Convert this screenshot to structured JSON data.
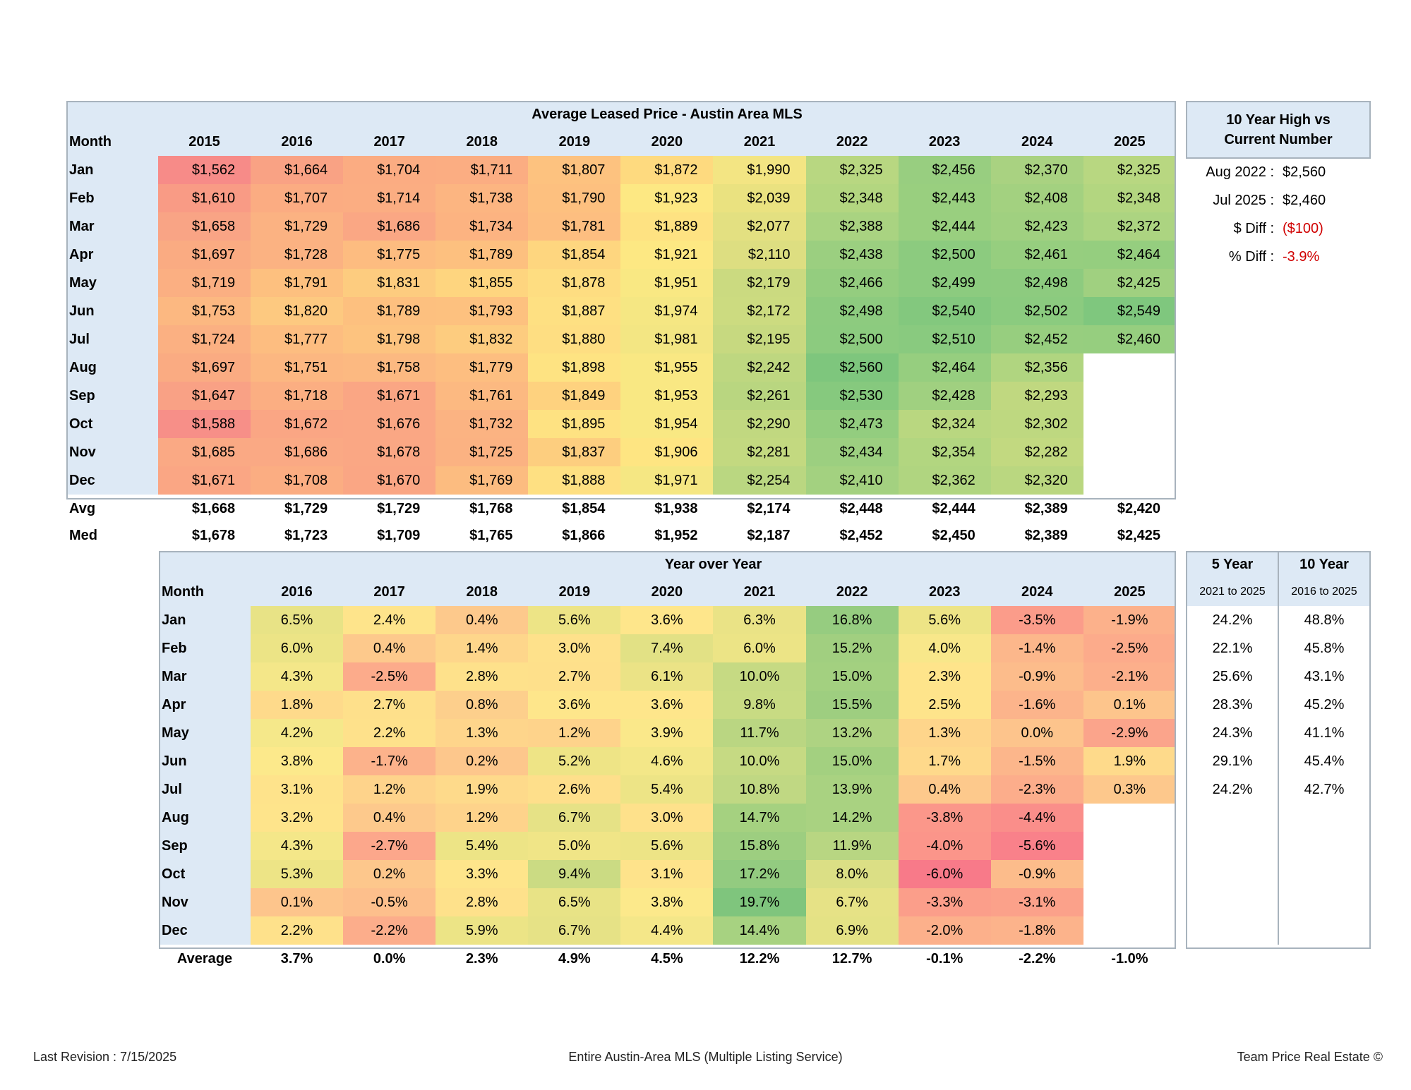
{
  "leased": {
    "title": "Average Leased Price - Austin Area MLS",
    "month_header": "Month",
    "years": [
      "2015",
      "2016",
      "2017",
      "2018",
      "2019",
      "2020",
      "2021",
      "2022",
      "2023",
      "2024",
      "2025"
    ],
    "rows": [
      {
        "m": "Jan",
        "v": [
          "$1,562",
          "$1,664",
          "$1,704",
          "$1,711",
          "$1,807",
          "$1,872",
          "$1,990",
          "$2,325",
          "$2,456",
          "$2,370",
          "$2,325"
        ],
        "c": [
          "#f78b88",
          "#f9a284",
          "#fbac82",
          "#fbad82",
          "#fdc27f",
          "#feda7f",
          "#f3e583",
          "#b8d781",
          "#98ce80",
          "#a9d281",
          "#b8d781"
        ]
      },
      {
        "m": "Feb",
        "v": [
          "$1,610",
          "$1,707",
          "$1,714",
          "$1,738",
          "$1,790",
          "$1,923",
          "$2,039",
          "$2,348",
          "$2,443",
          "$2,408",
          "$2,348"
        ],
        "c": [
          "#f99b85",
          "#fbac82",
          "#fbad82",
          "#fcb581",
          "#fdc07f",
          "#fde883",
          "#eae280",
          "#b3d680",
          "#99cf7f",
          "#a3d180",
          "#b3d680"
        ]
      },
      {
        "m": "Mar",
        "v": [
          "$1,658",
          "$1,729",
          "$1,686",
          "$1,734",
          "$1,781",
          "$1,889",
          "$2,077",
          "$2,388",
          "$2,444",
          "$2,423",
          "$2,372"
        ],
        "c": [
          "#f9a485",
          "#fbb282",
          "#faa784",
          "#fcb381",
          "#fdbe80",
          "#fee282",
          "#e3e081",
          "#a9d381",
          "#99cf7f",
          "#a0d080",
          "#acd481"
        ]
      },
      {
        "m": "Apr",
        "v": [
          "$1,697",
          "$1,728",
          "$1,775",
          "$1,789",
          "$1,854",
          "$1,921",
          "$2,110",
          "$2,438",
          "$2,500",
          "$2,461",
          "$2,464"
        ],
        "c": [
          "#faab82",
          "#fbb282",
          "#fdbc80",
          "#fdc07f",
          "#fed67f",
          "#fde883",
          "#ddde81",
          "#9bcf80",
          "#8ccb7f",
          "#96ce7f",
          "#95ce7f"
        ]
      },
      {
        "m": "May",
        "v": [
          "$1,719",
          "$1,791",
          "$1,831",
          "$1,855",
          "$1,878",
          "$1,951",
          "$2,179",
          "$2,466",
          "$2,499",
          "$2,498",
          "$2,425"
        ],
        "c": [
          "#fbaf82",
          "#fdc07f",
          "#fdcc7f",
          "#fed57f",
          "#fedd81",
          "#f9e883",
          "#cbda80",
          "#94cd7f",
          "#8ccb7f",
          "#8dcb7f",
          "#a0d080"
        ]
      },
      {
        "m": "Jun",
        "v": [
          "$1,753",
          "$1,820",
          "$1,789",
          "$1,793",
          "$1,887",
          "$1,974",
          "$2,172",
          "$2,498",
          "$2,540",
          "$2,502",
          "$2,549"
        ],
        "c": [
          "#fcb881",
          "#fdc980",
          "#fdc07f",
          "#fdc17f",
          "#fee082",
          "#f5e783",
          "#ccdb80",
          "#8dcb7f",
          "#83c87e",
          "#8bcb7f",
          "#7fc77e"
        ]
      },
      {
        "m": "Jul",
        "v": [
          "$1,724",
          "$1,777",
          "$1,798",
          "$1,832",
          "$1,880",
          "$1,981",
          "$2,195",
          "$2,500",
          "$2,510",
          "$2,452",
          "$2,460"
        ],
        "c": [
          "#fbb082",
          "#fdbd80",
          "#fdc37f",
          "#fdcc7f",
          "#fede82",
          "#f3e683",
          "#c7d980",
          "#8ccb7f",
          "#89ca7f",
          "#97ce7f",
          "#96ce7f"
        ]
      },
      {
        "m": "Aug",
        "v": [
          "$1,697",
          "$1,751",
          "$1,758",
          "$1,779",
          "$1,898",
          "$1,955",
          "$2,242",
          "$2,560",
          "$2,464",
          "$2,356",
          ""
        ],
        "c": [
          "#faab82",
          "#fcb781",
          "#fcb981",
          "#fdbe80",
          "#fee382",
          "#f9e883",
          "#bed780",
          "#7ec67d",
          "#96ce7f",
          "#b0d580",
          "#ffffff"
        ]
      },
      {
        "m": "Sep",
        "v": [
          "$1,647",
          "$1,718",
          "$1,671",
          "$1,761",
          "$1,849",
          "$1,953",
          "$2,261",
          "$2,530",
          "$2,428",
          "$2,293",
          ""
        ],
        "c": [
          "#f9a185",
          "#fbae82",
          "#faa684",
          "#fcb981",
          "#fed27f",
          "#f9e883",
          "#b9d680",
          "#86c97e",
          "#a0d080",
          "#c0d880",
          "#ffffff"
        ]
      },
      {
        "m": "Oct",
        "v": [
          "$1,588",
          "$1,672",
          "$1,676",
          "$1,732",
          "$1,895",
          "$1,954",
          "$2,290",
          "$2,473",
          "$2,324",
          "$2,302",
          ""
        ],
        "c": [
          "#f78f88",
          "#faa684",
          "#faa784",
          "#fbb382",
          "#fee282",
          "#f9e883",
          "#c1d880",
          "#93cd7f",
          "#b9d780",
          "#bed880",
          "#ffffff"
        ]
      },
      {
        "m": "Nov",
        "v": [
          "$1,685",
          "$1,686",
          "$1,678",
          "$1,725",
          "$1,837",
          "$1,906",
          "$2,281",
          "$2,434",
          "$2,354",
          "$2,282",
          ""
        ],
        "c": [
          "#faa984",
          "#faa984",
          "#faa784",
          "#fbb282",
          "#fdce7f",
          "#fee582",
          "#c3d980",
          "#9ccf80",
          "#b2d680",
          "#c2d980",
          "#ffffff"
        ]
      },
      {
        "m": "Dec",
        "v": [
          "$1,671",
          "$1,708",
          "$1,670",
          "$1,769",
          "$1,888",
          "$1,971",
          "$2,254",
          "$2,410",
          "$2,362",
          "$2,320",
          ""
        ],
        "c": [
          "#faa684",
          "#fbad82",
          "#faa684",
          "#fcbc80",
          "#fee082",
          "#f5e783",
          "#bad781",
          "#a3d180",
          "#b0d580",
          "#bad780",
          "#ffffff"
        ]
      }
    ],
    "avg_label": "Avg",
    "avg": [
      "$1,668",
      "$1,729",
      "$1,729",
      "$1,768",
      "$1,854",
      "$1,938",
      "$2,174",
      "$2,448",
      "$2,444",
      "$2,389",
      "$2,420"
    ],
    "med_label": "Med",
    "med": [
      "$1,678",
      "$1,723",
      "$1,709",
      "$1,765",
      "$1,866",
      "$1,952",
      "$2,187",
      "$2,452",
      "$2,450",
      "$2,389",
      "$2,425"
    ]
  },
  "high_box": {
    "header_line1": "10 Year High vs",
    "header_line2": "Current Number",
    "items": [
      {
        "label": "Aug 2022 :",
        "value": "$2,560",
        "negative": false
      },
      {
        "label": "Jul 2025 :",
        "value": "$2,460",
        "negative": false
      },
      {
        "label": "$ Diff :",
        "value": "($100)",
        "negative": true
      },
      {
        "label": "% Diff :",
        "value": "-3.9%",
        "negative": true
      }
    ]
  },
  "yoy": {
    "title": "Year over Year",
    "month_header": "Month",
    "years": [
      "2016",
      "2017",
      "2018",
      "2019",
      "2020",
      "2021",
      "2022",
      "2023",
      "2024",
      "2025"
    ],
    "rows": [
      {
        "m": "Jan",
        "v": [
          "6.5%",
          "2.4%",
          "0.4%",
          "5.6%",
          "3.6%",
          "6.3%",
          "16.8%",
          "5.6%",
          "-3.5%",
          "-1.9%"
        ],
        "c": [
          "#e8e386",
          "#fee48b",
          "#fdc98c",
          "#ede486",
          "#fee68b",
          "#eae386",
          "#96cc80",
          "#ede486",
          "#fb9c8a",
          "#fcb18b"
        ]
      },
      {
        "m": "Feb",
        "v": [
          "6.0%",
          "0.4%",
          "1.4%",
          "3.0%",
          "7.4%",
          "6.0%",
          "15.2%",
          "4.0%",
          "-1.4%",
          "-2.5%"
        ],
        "c": [
          "#ece486",
          "#fdc98c",
          "#fed68b",
          "#fee18b",
          "#e2e185",
          "#ece486",
          "#a1cf80",
          "#f8e78a",
          "#fcb78b",
          "#fcab8b"
        ]
      },
      {
        "m": "Mar",
        "v": [
          "4.3%",
          "-2.5%",
          "2.8%",
          "2.7%",
          "6.1%",
          "10.0%",
          "15.0%",
          "2.3%",
          "-0.9%",
          "-2.1%"
        ],
        "c": [
          "#f4e789",
          "#fcab8b",
          "#fee18b",
          "#fee08b",
          "#ebe386",
          "#c6da83",
          "#a3d080",
          "#fee48b",
          "#fcbc8b",
          "#fcaf8b"
        ]
      },
      {
        "m": "Apr",
        "v": [
          "1.8%",
          "2.7%",
          "0.8%",
          "3.6%",
          "3.6%",
          "9.8%",
          "15.5%",
          "2.5%",
          "-1.6%",
          "0.1%"
        ],
        "c": [
          "#feda8b",
          "#fee08b",
          "#fdcf8c",
          "#fee68b",
          "#fee68b",
          "#c8db83",
          "#9ece80",
          "#fee48b",
          "#fcb48b",
          "#fdc58c"
        ]
      },
      {
        "m": "May",
        "v": [
          "4.2%",
          "2.2%",
          "1.3%",
          "1.2%",
          "3.9%",
          "11.7%",
          "13.2%",
          "1.3%",
          "0.0%",
          "-2.9%"
        ],
        "c": [
          "#f5e88a",
          "#fee18b",
          "#fed58b",
          "#fed38b",
          "#fae88a",
          "#bad682",
          "#aed382",
          "#fed58b",
          "#fdc48c",
          "#fba48b"
        ]
      },
      {
        "m": "Jun",
        "v": [
          "3.8%",
          "-1.7%",
          "0.2%",
          "5.2%",
          "4.6%",
          "10.0%",
          "15.0%",
          "1.7%",
          "-1.5%",
          "1.9%"
        ],
        "c": [
          "#fce98b",
          "#fcb28b",
          "#fdc78c",
          "#eee486",
          "#f3e788",
          "#c6da83",
          "#a3d080",
          "#fed98b",
          "#fcb68b",
          "#feda8b"
        ]
      },
      {
        "m": "Jul",
        "v": [
          "3.1%",
          "1.2%",
          "1.9%",
          "2.6%",
          "5.4%",
          "10.8%",
          "13.9%",
          "0.4%",
          "-2.3%",
          "0.3%"
        ],
        "c": [
          "#fee38b",
          "#fed38b",
          "#feda8b",
          "#fedf8b",
          "#ede486",
          "#c0d883",
          "#a9d281",
          "#fdc98c",
          "#fcad8b",
          "#fdc88c"
        ]
      },
      {
        "m": "Aug",
        "v": [
          "3.2%",
          "0.4%",
          "1.2%",
          "6.7%",
          "3.0%",
          "14.7%",
          "14.2%",
          "-3.8%",
          "-4.4%",
          ""
        ],
        "c": [
          "#fee48b",
          "#fdc98c",
          "#fed38b",
          "#e6e286",
          "#fee18b",
          "#a5d180",
          "#a9d281",
          "#fb978a",
          "#fa8e8a",
          "#ffffff"
        ]
      },
      {
        "m": "Sep",
        "v": [
          "4.3%",
          "-2.7%",
          "5.4%",
          "5.0%",
          "5.6%",
          "15.8%",
          "11.9%",
          "-4.0%",
          "-5.6%",
          ""
        ],
        "c": [
          "#f4e789",
          "#fca78b",
          "#ede486",
          "#f0e587",
          "#ede486",
          "#9dce80",
          "#b8d682",
          "#fb958a",
          "#f9818a",
          "#ffffff"
        ]
      },
      {
        "m": "Oct",
        "v": [
          "5.3%",
          "0.2%",
          "3.3%",
          "9.4%",
          "3.1%",
          "17.2%",
          "8.0%",
          "-6.0%",
          "-0.9%",
          ""
        ],
        "c": [
          "#ede486",
          "#fdc78c",
          "#fee58b",
          "#cbdb83",
          "#fee38b",
          "#93cb80",
          "#dbdf85",
          "#f87a89",
          "#fcbc8b",
          "#ffffff"
        ]
      },
      {
        "m": "Nov",
        "v": [
          "0.1%",
          "-0.5%",
          "2.8%",
          "6.5%",
          "3.8%",
          "19.7%",
          "6.7%",
          "-3.3%",
          "-3.1%",
          ""
        ],
        "c": [
          "#fdc58c",
          "#fdbf8c",
          "#fee18b",
          "#e8e386",
          "#fce98b",
          "#7fc57d",
          "#e6e286",
          "#fb9e8a",
          "#fba18a",
          "#ffffff"
        ]
      },
      {
        "m": "Dec",
        "v": [
          "2.2%",
          "-2.2%",
          "5.9%",
          "6.7%",
          "4.4%",
          "14.4%",
          "6.9%",
          "-2.0%",
          "-1.8%",
          ""
        ],
        "c": [
          "#fee18b",
          "#fcad8b",
          "#ece486",
          "#e6e286",
          "#f4e789",
          "#a7d281",
          "#e4e285",
          "#fcb08b",
          "#fcb38b",
          "#ffffff"
        ]
      }
    ],
    "avg_label": "Average",
    "avg": [
      "3.7%",
      "0.0%",
      "2.3%",
      "4.9%",
      "4.5%",
      "12.2%",
      "12.7%",
      "-0.1%",
      "-2.2%",
      "-1.0%"
    ]
  },
  "growth": {
    "col1_header": "5 Year",
    "col1_sub": "2021 to 2025",
    "col2_header": "10 Year",
    "col2_sub": "2016 to 2025",
    "rows": [
      [
        "24.2%",
        "48.8%"
      ],
      [
        "22.1%",
        "45.8%"
      ],
      [
        "25.6%",
        "43.1%"
      ],
      [
        "28.3%",
        "45.2%"
      ],
      [
        "24.3%",
        "41.1%"
      ],
      [
        "29.1%",
        "45.4%"
      ],
      [
        "24.2%",
        "42.7%"
      ],
      [
        "",
        ""
      ],
      [
        "",
        ""
      ],
      [
        "",
        ""
      ],
      [
        "",
        ""
      ],
      [
        "",
        ""
      ]
    ]
  },
  "footer": {
    "left": "Last Revision : 7/15/2025",
    "center": "Entire Austin-Area MLS (Multiple Listing Service)",
    "right": "Team Price Real Estate ©"
  }
}
